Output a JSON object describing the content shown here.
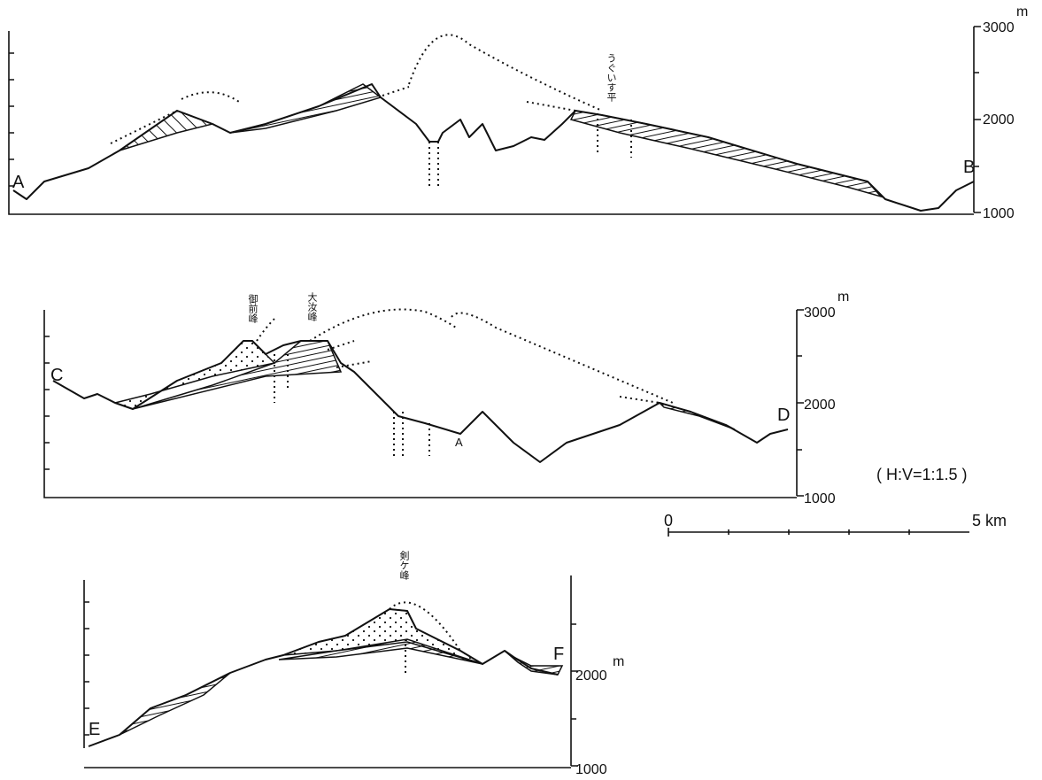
{
  "sections": [
    {
      "start": "A",
      "end": "B",
      "axis": {
        "top": "3000",
        "unit": "m",
        "mid": "2000",
        "bottom": "1000"
      },
      "places": [
        "うぐいす平"
      ]
    },
    {
      "start": "C",
      "end": "D",
      "axis": {
        "top": "3000",
        "unit": "m",
        "mid": "2000",
        "bottom": "1000"
      },
      "places": [
        "御前峰",
        "大汝峰"
      ],
      "marker": "A"
    },
    {
      "start": "E",
      "end": "F",
      "axis": {
        "mid": "2000",
        "unit": "m",
        "bottom": "1000"
      },
      "places": [
        "剣ケ峰"
      ]
    }
  ],
  "ratio": "( H:V=1:1.5 )",
  "scale_bar": {
    "start": "0",
    "end": "5 km"
  }
}
